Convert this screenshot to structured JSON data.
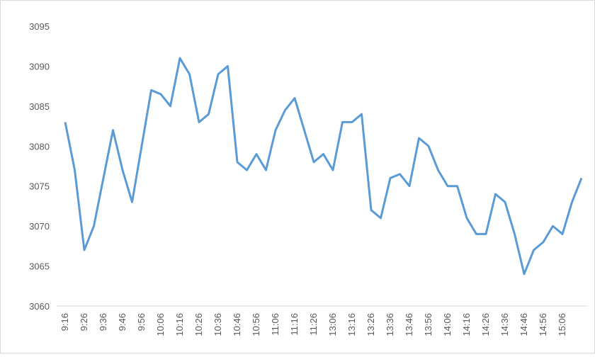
{
  "chart_data": {
    "type": "line",
    "categories": [
      "9:16",
      null,
      "9:26",
      null,
      "9:36",
      null,
      "9:46",
      null,
      "9:56",
      null,
      "10:06",
      null,
      "10:16",
      null,
      "10:26",
      null,
      "10:36",
      null,
      "10:46",
      null,
      "10:56",
      null,
      "11:06",
      null,
      "11:16",
      null,
      "11:26",
      null,
      "13:06",
      null,
      "13:16",
      null,
      "13:26",
      null,
      "13:36",
      null,
      "13:46",
      null,
      "13:56",
      null,
      "14:06",
      null,
      "14:16",
      null,
      "14:26",
      null,
      "14:36",
      null,
      "14:46",
      null,
      "14:56",
      null,
      "15:06",
      null,
      null
    ],
    "values": [
      3083,
      3077,
      3067,
      3070,
      3076,
      3082,
      3077,
      3073,
      3080,
      3087,
      3086.5,
      3085,
      3091,
      3089,
      3083,
      3084,
      3089,
      3090,
      3078,
      3077,
      3079,
      3077,
      3082,
      3084.5,
      3086,
      3082,
      3078,
      3079,
      3077,
      3083,
      3083,
      3084,
      3072,
      3071,
      3076,
      3076.5,
      3075,
      3081,
      3080,
      3077,
      3075,
      3075,
      3071,
      3069,
      3069,
      3074,
      3073,
      3069,
      3064,
      3067,
      3068,
      3070,
      3069,
      3073,
      3076
    ],
    "color": "#5b9bd5",
    "ylim": [
      3060,
      3095
    ],
    "yticks": [
      3060,
      3065,
      3070,
      3075,
      3080,
      3085,
      3090,
      3095
    ]
  }
}
